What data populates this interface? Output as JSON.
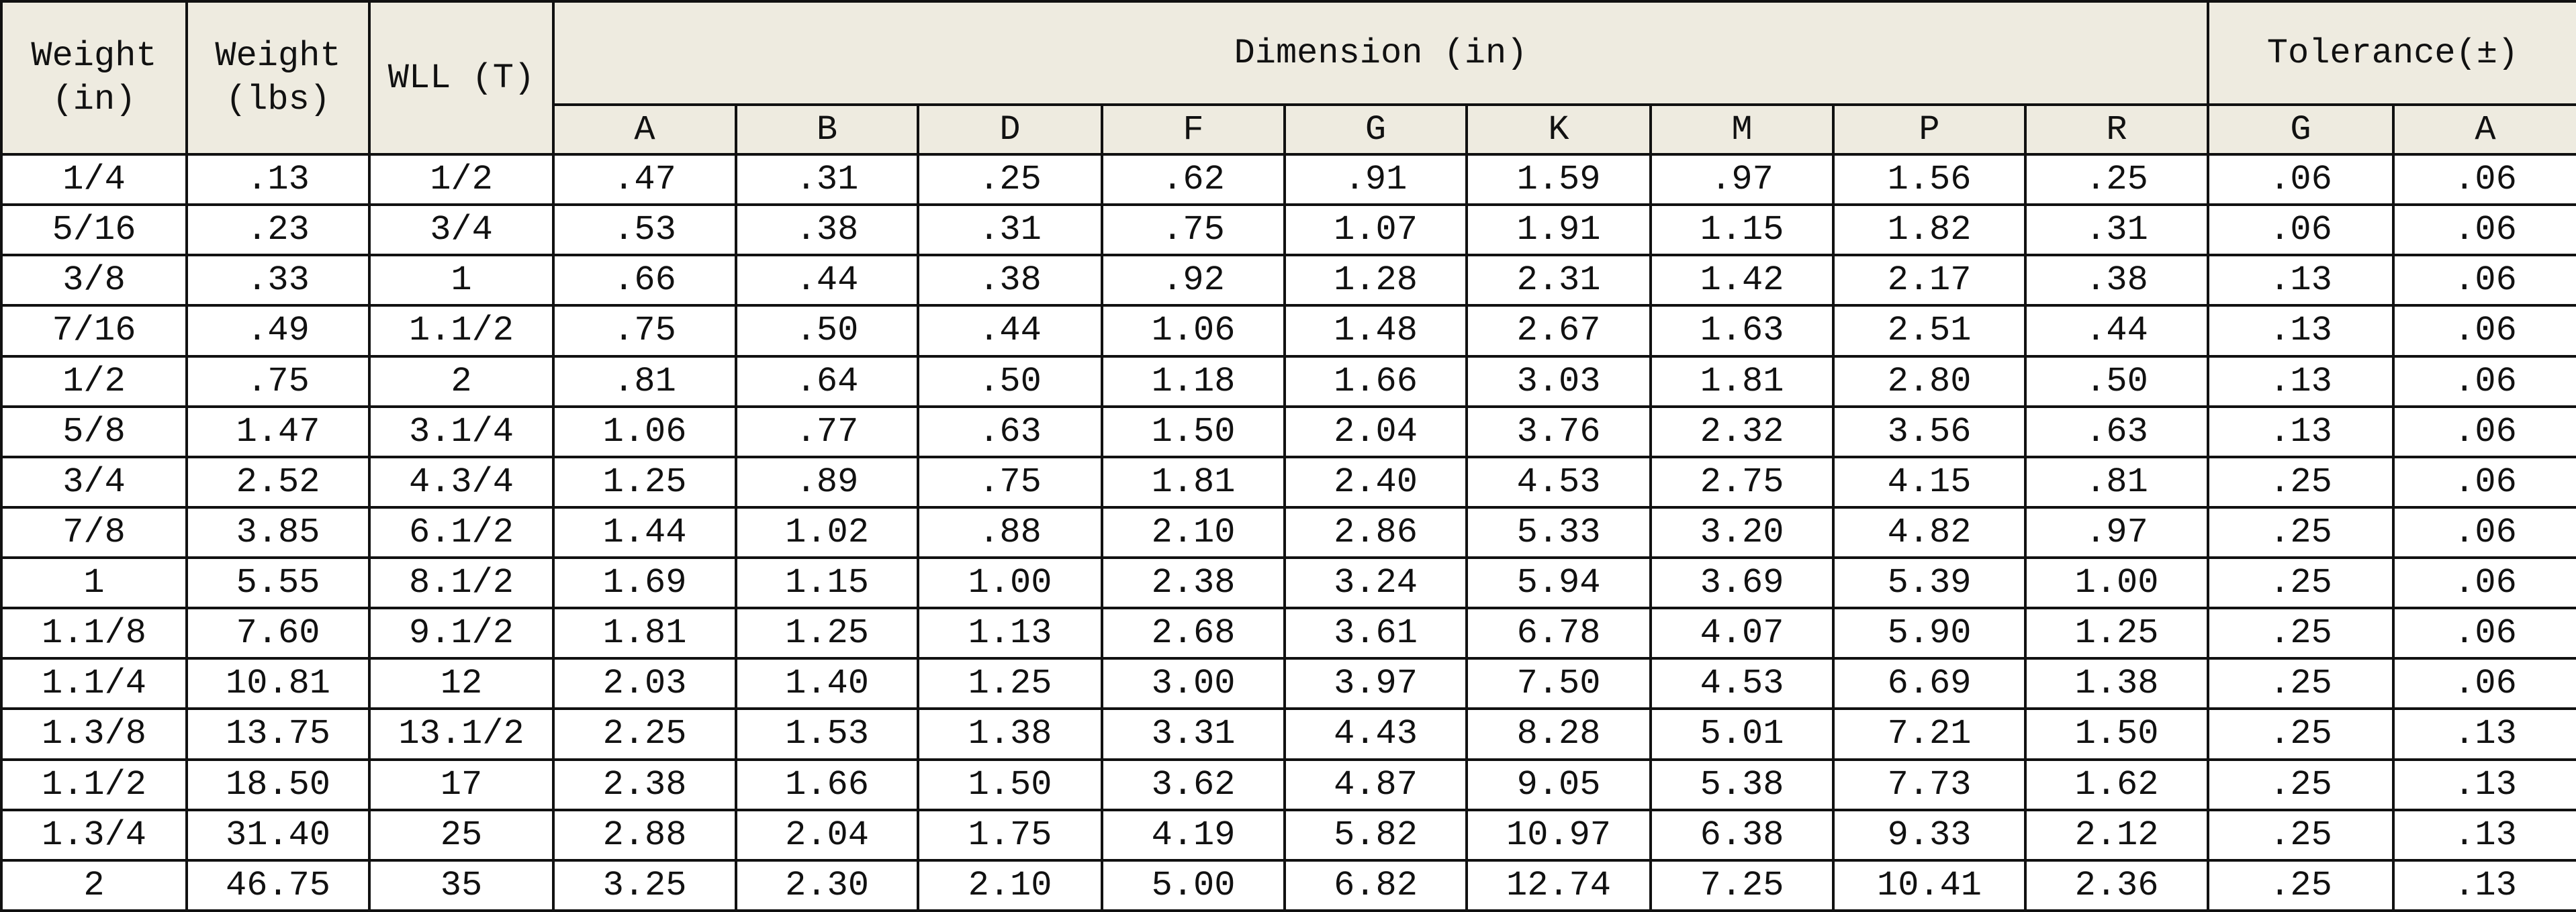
{
  "table": {
    "header_top": [
      "Weight (in)",
      "Weight (lbs)",
      "WLL (T)",
      "Dimension (in)",
      "Tolerance(±)"
    ],
    "sub_header": [
      "A",
      "B",
      "D",
      "F",
      "G",
      "K",
      "M",
      "P",
      "R",
      "G",
      "A"
    ],
    "rows": [
      [
        "1/4",
        ".13",
        "1/2",
        ".47",
        ".31",
        ".25",
        ".62",
        ".91",
        "1.59",
        ".97",
        "1.56",
        ".25",
        ".06",
        ".06"
      ],
      [
        "5/16",
        ".23",
        "3/4",
        ".53",
        ".38",
        ".31",
        ".75",
        "1.07",
        "1.91",
        "1.15",
        "1.82",
        ".31",
        ".06",
        ".06"
      ],
      [
        "3/8",
        ".33",
        "1",
        ".66",
        ".44",
        ".38",
        ".92",
        "1.28",
        "2.31",
        "1.42",
        "2.17",
        ".38",
        ".13",
        ".06"
      ],
      [
        "7/16",
        ".49",
        "1.1/2",
        ".75",
        ".50",
        ".44",
        "1.06",
        "1.48",
        "2.67",
        "1.63",
        "2.51",
        ".44",
        ".13",
        ".06"
      ],
      [
        "1/2",
        ".75",
        "2",
        ".81",
        ".64",
        ".50",
        "1.18",
        "1.66",
        "3.03",
        "1.81",
        "2.80",
        ".50",
        ".13",
        ".06"
      ],
      [
        "5/8",
        "1.47",
        "3.1/4",
        "1.06",
        ".77",
        ".63",
        "1.50",
        "2.04",
        "3.76",
        "2.32",
        "3.56",
        ".63",
        ".13",
        ".06"
      ],
      [
        "3/4",
        "2.52",
        "4.3/4",
        "1.25",
        ".89",
        ".75",
        "1.81",
        "2.40",
        "4.53",
        "2.75",
        "4.15",
        ".81",
        ".25",
        ".06"
      ],
      [
        "7/8",
        "3.85",
        "6.1/2",
        "1.44",
        "1.02",
        ".88",
        "2.10",
        "2.86",
        "5.33",
        "3.20",
        "4.82",
        ".97",
        ".25",
        ".06"
      ],
      [
        "1",
        "5.55",
        "8.1/2",
        "1.69",
        "1.15",
        "1.00",
        "2.38",
        "3.24",
        "5.94",
        "3.69",
        "5.39",
        "1.00",
        ".25",
        ".06"
      ],
      [
        "1.1/8",
        "7.60",
        "9.1/2",
        "1.81",
        "1.25",
        "1.13",
        "2.68",
        "3.61",
        "6.78",
        "4.07",
        "5.90",
        "1.25",
        ".25",
        ".06"
      ],
      [
        "1.1/4",
        "10.81",
        "12",
        "2.03",
        "1.40",
        "1.25",
        "3.00",
        "3.97",
        "7.50",
        "4.53",
        "6.69",
        "1.38",
        ".25",
        ".06"
      ],
      [
        "1.3/8",
        "13.75",
        "13.1/2",
        "2.25",
        "1.53",
        "1.38",
        "3.31",
        "4.43",
        "8.28",
        "5.01",
        "7.21",
        "1.50",
        ".25",
        ".13"
      ],
      [
        "1.1/2",
        "18.50",
        "17",
        "2.38",
        "1.66",
        "1.50",
        "3.62",
        "4.87",
        "9.05",
        "5.38",
        "7.73",
        "1.62",
        ".25",
        ".13"
      ],
      [
        "1.3/4",
        "31.40",
        "25",
        "2.88",
        "2.04",
        "1.75",
        "4.19",
        "5.82",
        "10.97",
        "6.38",
        "9.33",
        "2.12",
        ".25",
        ".13"
      ],
      [
        "2",
        "46.75",
        "35",
        "3.25",
        "2.30",
        "2.10",
        "5.00",
        "6.82",
        "12.74",
        "7.25",
        "10.41",
        "2.36",
        ".25",
        ".13"
      ]
    ]
  }
}
